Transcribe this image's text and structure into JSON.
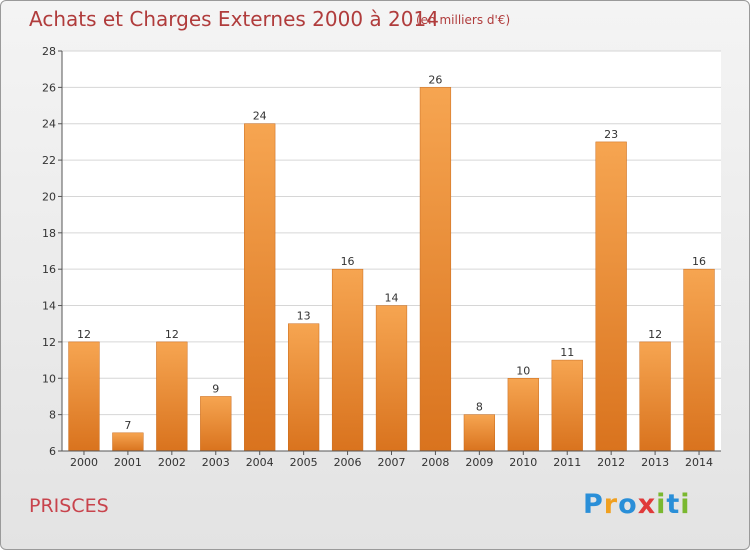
{
  "header": {
    "title": "Achats et Charges Externes 2000 à 2014",
    "unit": "(en milliers d'€)"
  },
  "footer": {
    "commune": "PRISCES",
    "logo_text": "Proxiti",
    "logo_letters": [
      {
        "char": "P",
        "color": "#2a8fd8"
      },
      {
        "char": "r",
        "color": "#f0a020"
      },
      {
        "char": "o",
        "color": "#2a8fd8"
      },
      {
        "char": "x",
        "color": "#e03a3a"
      },
      {
        "char": "i",
        "color": "#7ab830"
      },
      {
        "char": "t",
        "color": "#2a8fd8"
      },
      {
        "char": "i",
        "color": "#7ab830"
      }
    ]
  },
  "colors": {
    "bar_light": "#f6a551",
    "bar_dark": "#d9731e",
    "grid": "#d6d6d6",
    "title": "#b03c3c"
  },
  "chart_data": {
    "type": "bar",
    "title": "Achats et Charges Externes 2000 à 2014",
    "subtitle": "(en milliers d'€)",
    "categories": [
      "2000",
      "2001",
      "2002",
      "2003",
      "2004",
      "2005",
      "2006",
      "2007",
      "2008",
      "2009",
      "2010",
      "2011",
      "2012",
      "2013",
      "2014"
    ],
    "values": [
      12,
      7,
      12,
      9,
      24,
      13,
      16,
      14,
      26,
      8,
      10,
      11,
      23,
      12,
      16
    ],
    "ylim": [
      6,
      28
    ],
    "yticks": [
      6,
      8,
      10,
      12,
      14,
      16,
      18,
      20,
      22,
      24,
      26,
      28
    ],
    "grid": true,
    "data_labels": true
  }
}
